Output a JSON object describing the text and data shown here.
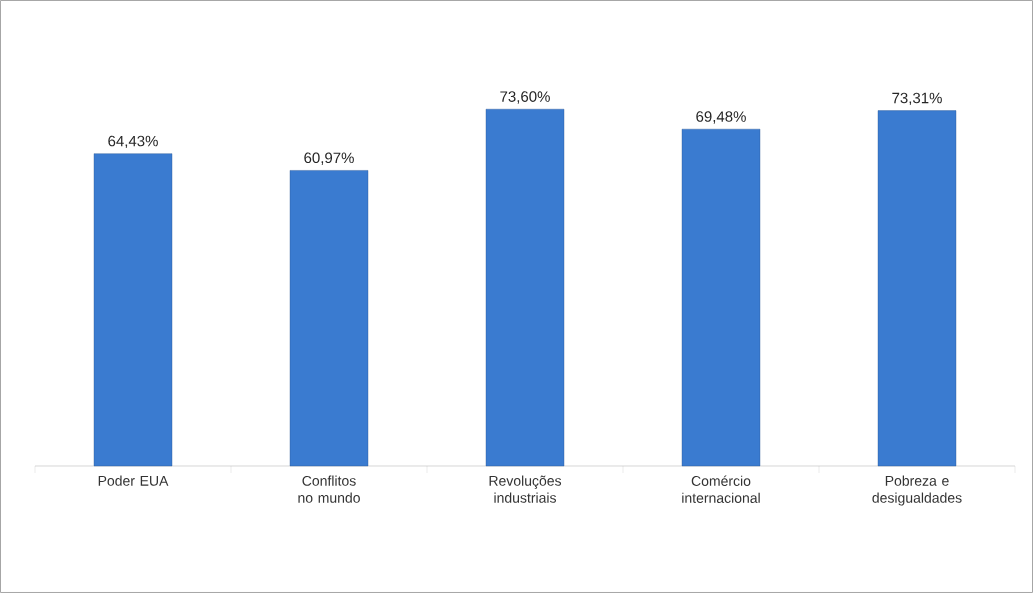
{
  "chart_data": {
    "type": "bar",
    "categories": [
      "Poder EUA",
      "Conflitos no mundo",
      "Revoluções industriais",
      "Comércio internacional",
      "Pobreza e desigualdades"
    ],
    "values": [
      64.43,
      60.97,
      73.6,
      69.48,
      73.31
    ],
    "value_labels": [
      "64,43%",
      "60,97%",
      "73,60%",
      "69,48%",
      "73,31%"
    ],
    "color": "#3a7bd0"
  }
}
